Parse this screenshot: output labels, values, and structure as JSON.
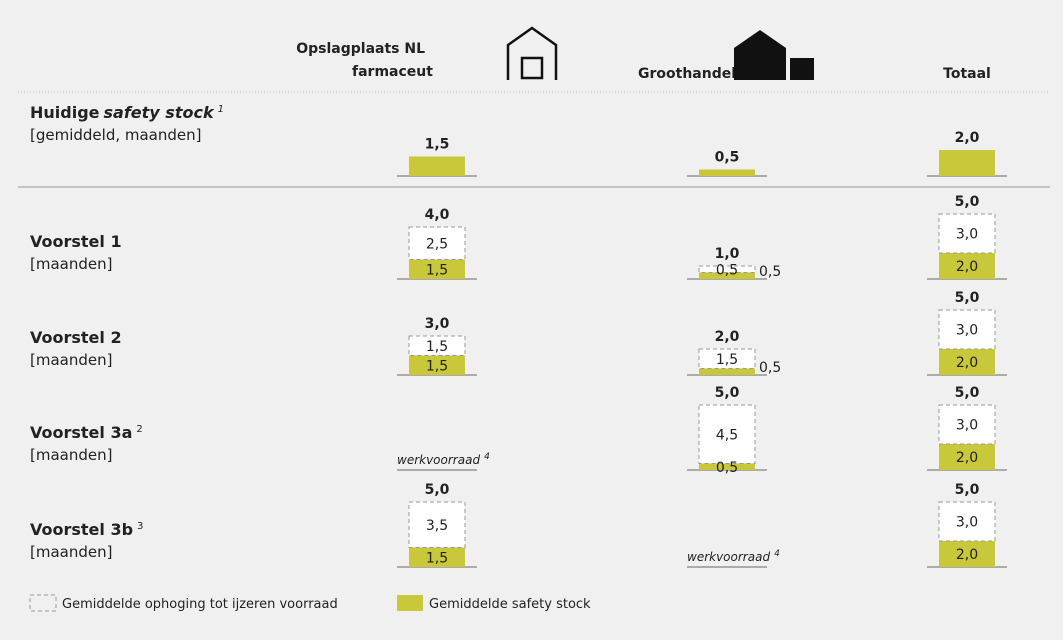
{
  "header": {
    "columns": [
      {
        "line1": "Opslagplaats NL",
        "line2": "farmaceut"
      },
      {
        "label": "Groothandel"
      },
      {
        "label": "Totaal"
      }
    ]
  },
  "rows": [
    {
      "title": "Huidige",
      "title_italic": "safety stock",
      "footnote": "1",
      "subtitle": "[gemiddeld, maanden]",
      "cells": [
        {
          "safety": {
            "value": 1.5,
            "label": "1,5"
          }
        },
        {
          "safety": {
            "value": 0.5,
            "label": "0,5"
          }
        },
        {
          "safety": {
            "value": 2.0,
            "label": "2,0"
          }
        }
      ]
    },
    {
      "title": "Voorstel 1",
      "subtitle": "[maanden]",
      "cells": [
        {
          "total": {
            "value": 4.0,
            "label": "4,0"
          },
          "increase": {
            "value": 2.5,
            "label": "2,5"
          },
          "safety": {
            "value": 1.5,
            "label": "1,5"
          }
        },
        {
          "total": {
            "value": 1.0,
            "label": "1,0"
          },
          "increase": {
            "value": 0.5,
            "label": "0,5"
          },
          "safety": {
            "value": 0.5,
            "label": "0,5"
          },
          "safety_label_outside": true
        },
        {
          "total": {
            "value": 5.0,
            "label": "5,0"
          },
          "increase": {
            "value": 3.0,
            "label": "3,0"
          },
          "safety": {
            "value": 2.0,
            "label": "2,0"
          }
        }
      ]
    },
    {
      "title": "Voorstel 2",
      "subtitle": "[maanden]",
      "cells": [
        {
          "total": {
            "value": 3.0,
            "label": "3,0"
          },
          "increase": {
            "value": 1.5,
            "label": "1,5"
          },
          "safety": {
            "value": 1.5,
            "label": "1,5"
          }
        },
        {
          "total": {
            "value": 2.0,
            "label": "2,0"
          },
          "increase": {
            "value": 1.5,
            "label": "1,5"
          },
          "safety": {
            "value": 0.5,
            "label": "0,5"
          },
          "safety_label_outside": true
        },
        {
          "total": {
            "value": 5.0,
            "label": "5,0"
          },
          "increase": {
            "value": 3.0,
            "label": "3,0"
          },
          "safety": {
            "value": 2.0,
            "label": "2,0"
          }
        }
      ]
    },
    {
      "title": "Voorstel 3a",
      "footnote": "2",
      "subtitle": "[maanden]",
      "cells": [
        {
          "note": "werkvoorraad",
          "footnote": "4"
        },
        {
          "total": {
            "value": 5.0,
            "label": "5,0"
          },
          "increase": {
            "value": 4.5,
            "label": "4,5"
          },
          "safety": {
            "value": 0.5,
            "label": "0,5"
          }
        },
        {
          "total": {
            "value": 5.0,
            "label": "5,0"
          },
          "increase": {
            "value": 3.0,
            "label": "3,0"
          },
          "safety": {
            "value": 2.0,
            "label": "2,0"
          }
        }
      ]
    },
    {
      "title": "Voorstel 3b",
      "footnote": "3",
      "subtitle": "[maanden]",
      "cells": [
        {
          "total": {
            "value": 5.0,
            "label": "5,0"
          },
          "increase": {
            "value": 3.5,
            "label": "3,5"
          },
          "safety": {
            "value": 1.5,
            "label": "1,5"
          }
        },
        {
          "note": "werkvoorraad",
          "footnote": "4"
        },
        {
          "total": {
            "value": 5.0,
            "label": "5,0"
          },
          "increase": {
            "value": 3.0,
            "label": "3,0"
          },
          "safety": {
            "value": 2.0,
            "label": "2,0"
          }
        }
      ]
    }
  ],
  "legend": {
    "increase": "Gemiddelde ophoging tot ijzeren voorraad",
    "safety": "Gemiddelde safety stock"
  }
}
